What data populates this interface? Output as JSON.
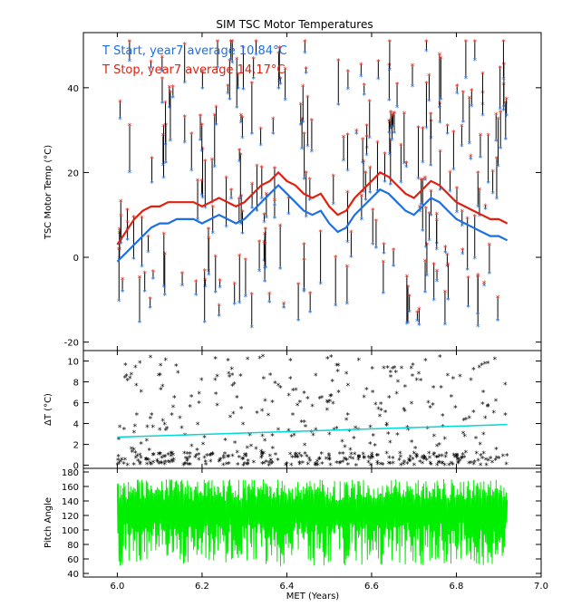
{
  "chart_data": [
    {
      "type": "scatter",
      "title": "SIM TSC Motor Temperatures",
      "xlabel": "",
      "ylabel": "TSC Motor Temp (°C)",
      "xlim": [
        5.92,
        7.0
      ],
      "ylim": [
        -22,
        53
      ],
      "yticks": [
        -20,
        0,
        20,
        40
      ],
      "legend": [
        {
          "label": "T Start, year7 average 10.84°C",
          "color": "#1e6fe0"
        },
        {
          "label": "T Stop, year7 average 14.17°C",
          "color": "#e02010"
        }
      ],
      "legend_position": "top-left",
      "series": [
        {
          "name": "T Start, year7 average 10.84°C",
          "color": "#1e6fe0",
          "kind": "running-average",
          "x": [
            6.0,
            6.02,
            6.04,
            6.06,
            6.08,
            6.1,
            6.12,
            6.14,
            6.16,
            6.18,
            6.2,
            6.22,
            6.24,
            6.26,
            6.28,
            6.3,
            6.32,
            6.34,
            6.36,
            6.38,
            6.4,
            6.42,
            6.44,
            6.46,
            6.48,
            6.5,
            6.52,
            6.54,
            6.56,
            6.58,
            6.6,
            6.62,
            6.64,
            6.66,
            6.68,
            6.7,
            6.72,
            6.74,
            6.76,
            6.78,
            6.8,
            6.82,
            6.84,
            6.86,
            6.88,
            6.9,
            6.92
          ],
          "y": [
            -1,
            1,
            3,
            5,
            7,
            8,
            8,
            9,
            9,
            9,
            8,
            9,
            10,
            9,
            8,
            9,
            11,
            13,
            15,
            17,
            15,
            13,
            11,
            10,
            11,
            8,
            6,
            7,
            10,
            12,
            14,
            16,
            15,
            13,
            11,
            10,
            12,
            14,
            13,
            11,
            9,
            8,
            7,
            6,
            5,
            5,
            4
          ]
        },
        {
          "name": "T Stop, year7 average 14.17°C",
          "color": "#e02010",
          "kind": "running-average",
          "x": [
            6.0,
            6.02,
            6.04,
            6.06,
            6.08,
            6.1,
            6.12,
            6.14,
            6.16,
            6.18,
            6.2,
            6.22,
            6.24,
            6.26,
            6.28,
            6.3,
            6.32,
            6.34,
            6.36,
            6.38,
            6.4,
            6.42,
            6.44,
            6.46,
            6.48,
            6.5,
            6.52,
            6.54,
            6.56,
            6.58,
            6.6,
            6.62,
            6.64,
            6.66,
            6.68,
            6.7,
            6.72,
            6.74,
            6.76,
            6.78,
            6.8,
            6.82,
            6.84,
            6.86,
            6.88,
            6.9,
            6.92
          ],
          "y": [
            3,
            6,
            9,
            11,
            12,
            12,
            13,
            13,
            13,
            13,
            12,
            13,
            14,
            13,
            12,
            13,
            15,
            17,
            18,
            20,
            18,
            17,
            15,
            14,
            15,
            12,
            10,
            11,
            14,
            16,
            18,
            20,
            19,
            17,
            15,
            14,
            16,
            18,
            17,
            15,
            13,
            12,
            11,
            10,
            9,
            9,
            8
          ]
        }
      ],
      "note_points": "individual start/stop pairs drawn as vertical black segments with blue start and red stop star markers; scattered over [-18, 51] °C"
    },
    {
      "type": "scatter",
      "title": "",
      "xlabel": "",
      "ylabel": "ΔT (°C)",
      "xlim": [
        5.92,
        7.0
      ],
      "ylim": [
        -0.3,
        11
      ],
      "yticks": [
        0,
        2,
        4,
        6,
        8,
        10
      ],
      "series": [
        {
          "name": "",
          "color": "#00d8d8",
          "kind": "trend-line",
          "x": [
            6.0,
            6.92
          ],
          "y": [
            2.7,
            3.9
          ]
        }
      ],
      "note_points": "ΔT of each move plotted as black asterisks, 0 to 10.5 °C"
    },
    {
      "type": "line",
      "title": "",
      "xlabel": "MET (Years)",
      "ylabel": "Pitch Angle",
      "xlim": [
        5.92,
        7.0
      ],
      "ylim": [
        35,
        185
      ],
      "yticks": [
        40,
        60,
        80,
        100,
        120,
        140,
        160,
        180
      ],
      "xticks": [
        6.0,
        6.2,
        6.4,
        6.6,
        6.8,
        7.0
      ],
      "series": [
        {
          "name": "",
          "color": "#00ee00",
          "kind": "dense-trace",
          "x_range": [
            6.0,
            6.92
          ],
          "y_range": [
            45,
            172
          ]
        }
      ]
    }
  ]
}
